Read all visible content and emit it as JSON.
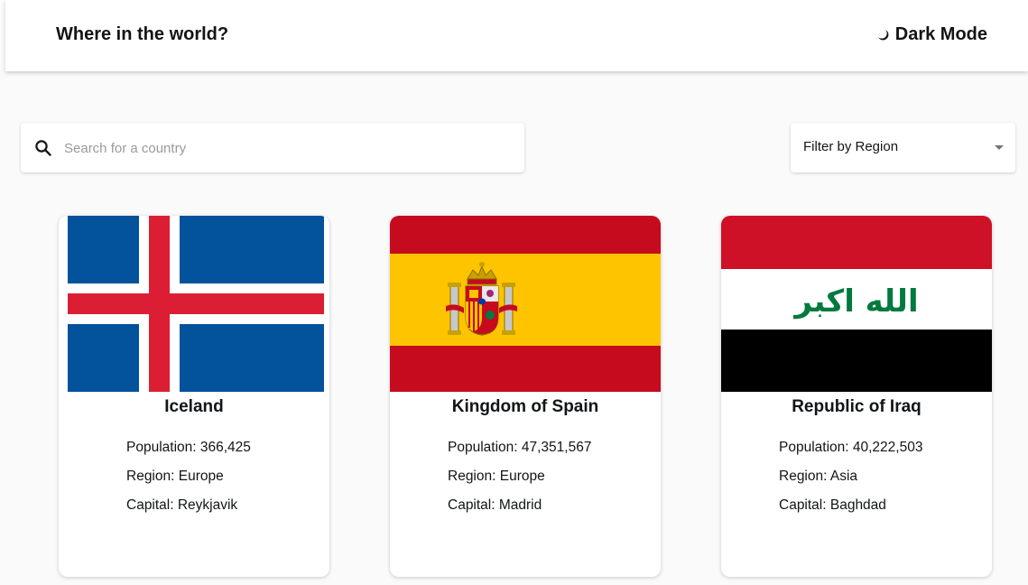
{
  "header": {
    "title": "Where in the world?",
    "dark_mode_label": "Dark Mode",
    "icon": "moon-icon"
  },
  "search": {
    "placeholder": "Search for a country",
    "value": "",
    "icon": "search-icon"
  },
  "filter": {
    "label": "Filter by Region",
    "icon": "chevron-down-icon"
  },
  "countries": [
    {
      "name": "Iceland",
      "flag": "iceland-flag",
      "population_label": "Population: 366,425",
      "region_label": "Region: Europe",
      "capital_label": "Capital: Reykjavik"
    },
    {
      "name": "Kingdom of Spain",
      "flag": "spain-flag",
      "population_label": "Population: 47,351,567",
      "region_label": "Region: Europe",
      "capital_label": "Capital: Madrid"
    },
    {
      "name": "Republic of Iraq",
      "flag": "iraq-flag",
      "flag_text": "الله اكبر",
      "population_label": "Population: 40,222,503",
      "region_label": "Region: Asia",
      "capital_label": "Capital: Baghdad"
    }
  ],
  "colors": {
    "background": "#fafafa",
    "text": "#111517",
    "iceland_blue": "#02529c",
    "iceland_red": "#dc1e35",
    "spain_red": "#c60b1e",
    "spain_yellow": "#ffc400",
    "iraq_red": "#ce1126",
    "iraq_green": "#007a3d"
  }
}
